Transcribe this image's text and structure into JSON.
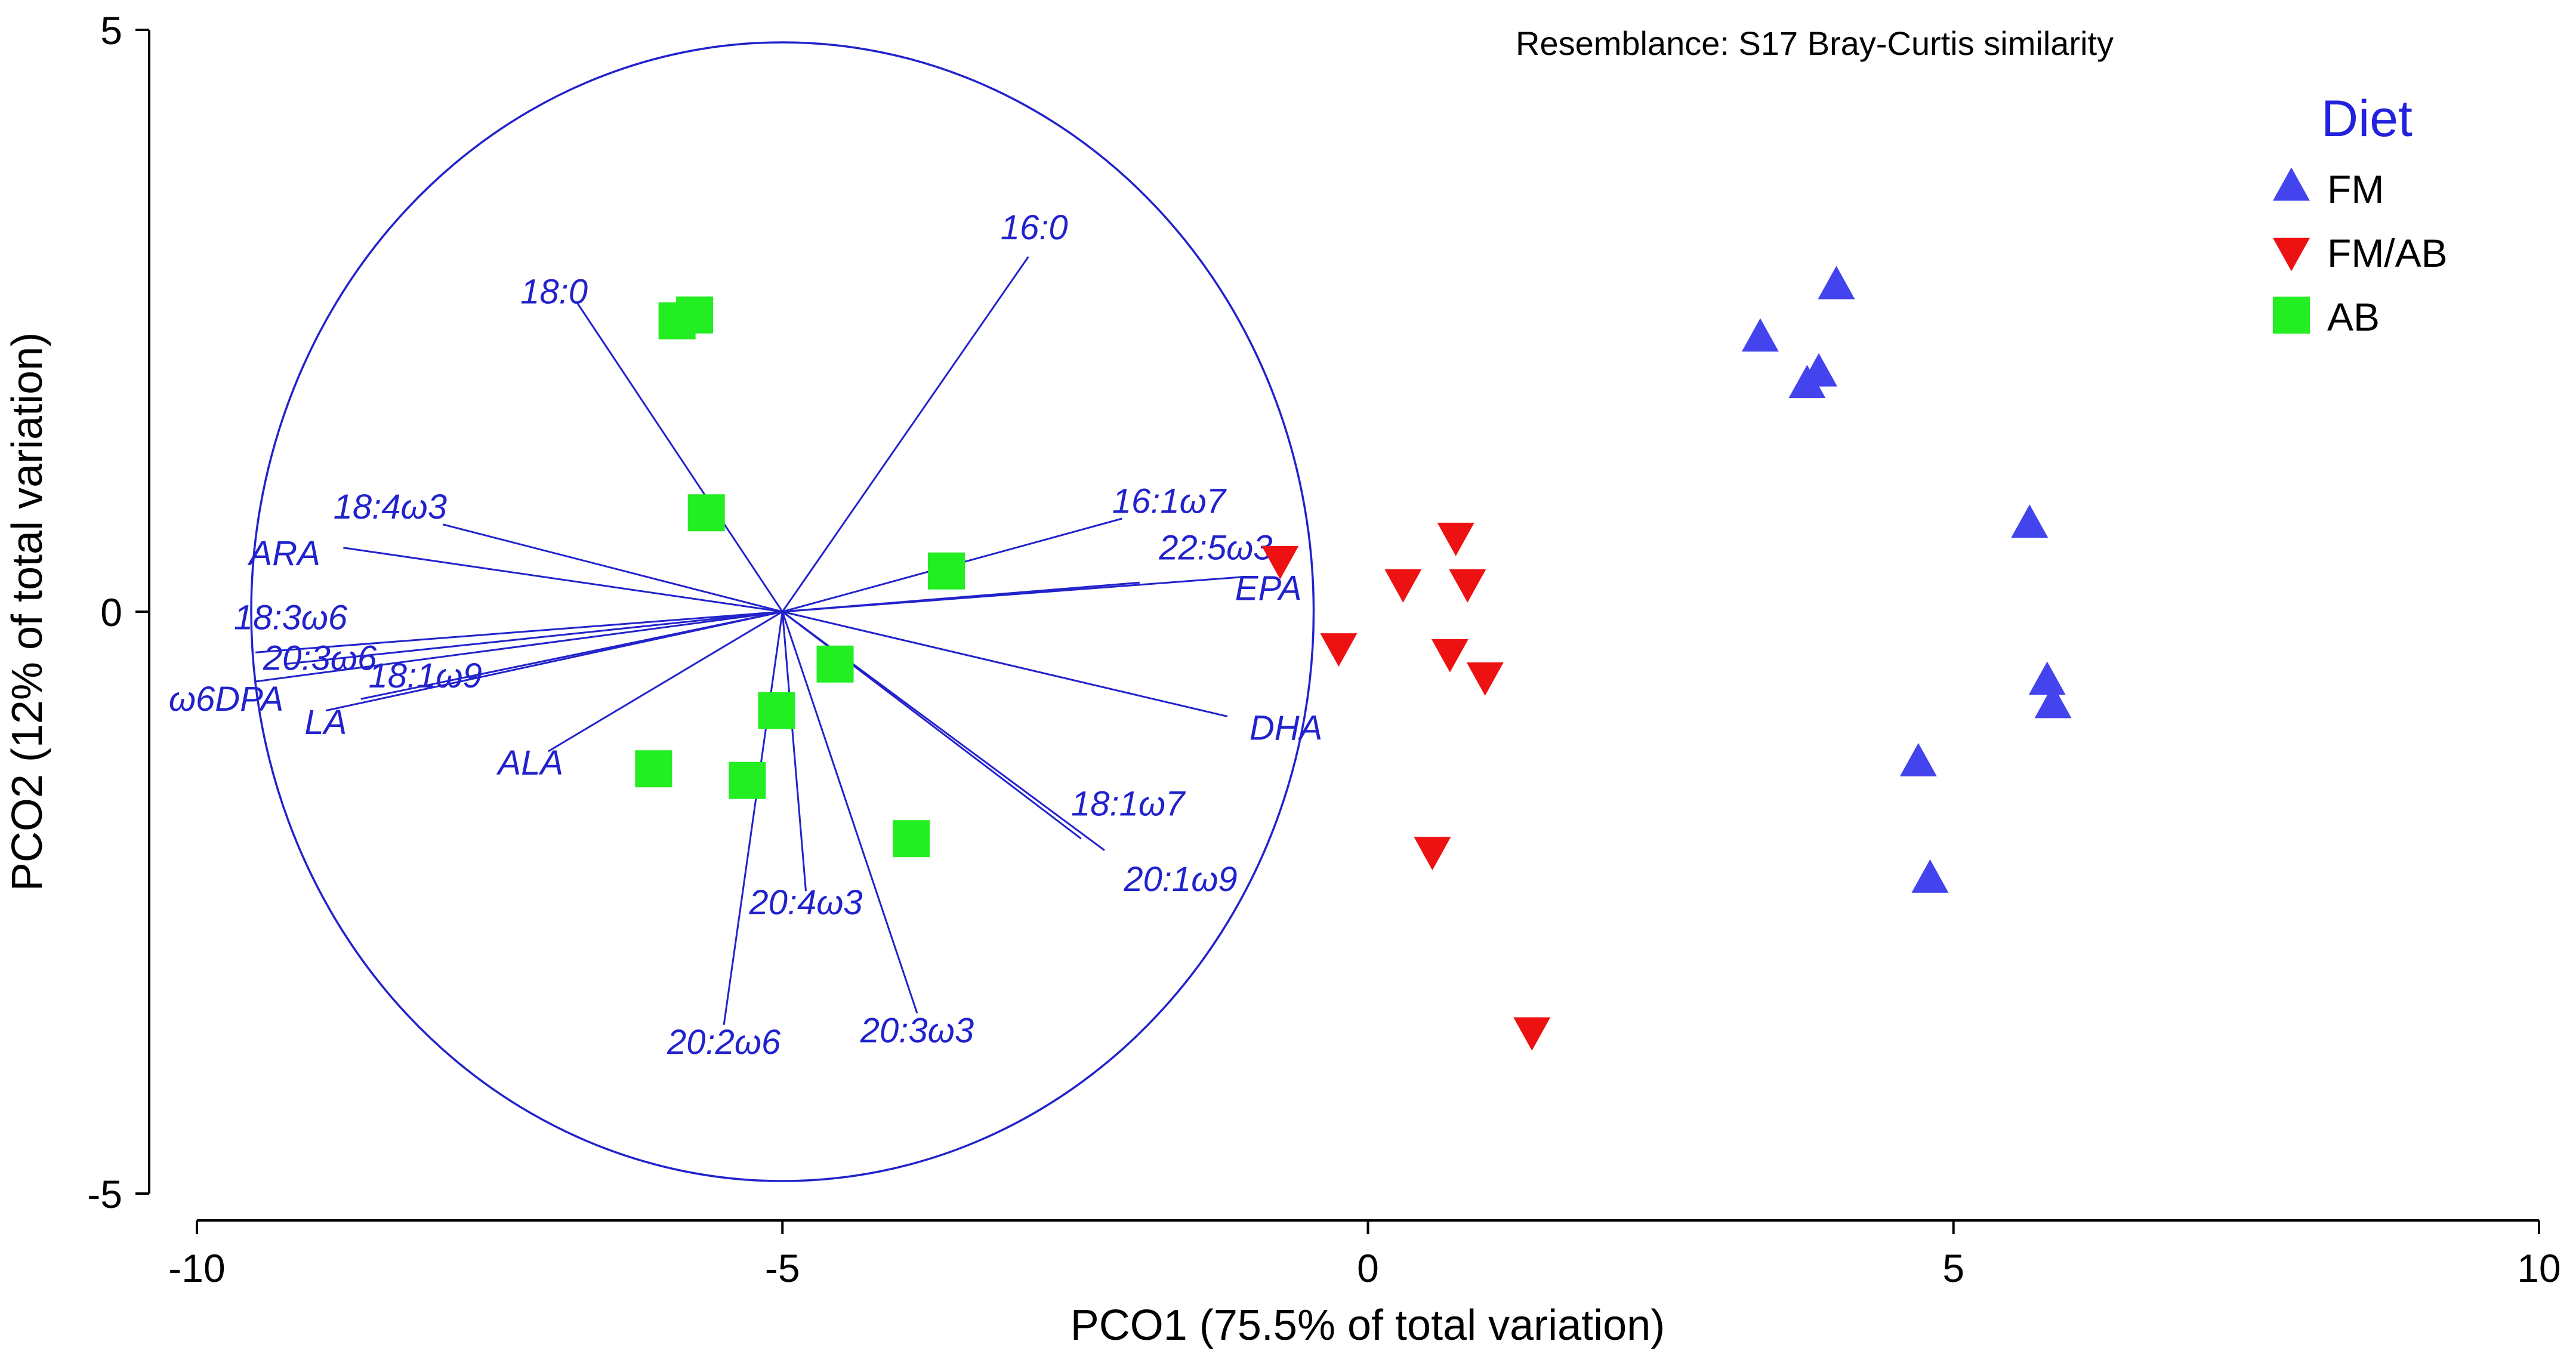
{
  "chart_data": {
    "type": "scatter",
    "title": "",
    "annotation": "Resemblance: S17 Bray-Curtis similarity",
    "xlabel": "PCO1 (75.5% of total variation)",
    "ylabel": "PCO2 (12% of total variation)",
    "xlim": [
      -10,
      10
    ],
    "ylim": [
      -5,
      5
    ],
    "xticks": [
      -10,
      -5,
      0,
      5,
      10
    ],
    "yticks": [
      -5,
      0,
      5
    ],
    "xtick_labels": [
      "-10",
      "-5",
      "0",
      "5",
      "10"
    ],
    "ytick_labels": [
      "-5",
      "0",
      "5"
    ],
    "legend": {
      "title": "Diet",
      "placement": "top-right",
      "entries": [
        {
          "label": "FM",
          "marker": "triangle-up",
          "color": "#4444ee"
        },
        {
          "label": "FM/AB",
          "marker": "triangle-down",
          "color": "#ee1111"
        },
        {
          "label": "AB",
          "marker": "square",
          "color": "#22ee22"
        }
      ]
    },
    "series": [
      {
        "name": "FM",
        "marker": "triangle-up",
        "color": "#4444ee",
        "points": [
          [
            4.0,
            2.8
          ],
          [
            3.35,
            2.35
          ],
          [
            3.85,
            2.05
          ],
          [
            3.75,
            1.95
          ],
          [
            5.65,
            0.75
          ],
          [
            5.8,
            -0.6
          ],
          [
            5.85,
            -0.8
          ],
          [
            4.7,
            -1.3
          ],
          [
            4.8,
            -2.3
          ]
        ]
      },
      {
        "name": "FM/AB",
        "marker": "triangle-down",
        "color": "#ee1111",
        "points": [
          [
            -0.75,
            0.45
          ],
          [
            0.75,
            0.65
          ],
          [
            0.3,
            0.25
          ],
          [
            0.85,
            0.25
          ],
          [
            -0.25,
            -0.3
          ],
          [
            0.7,
            -0.35
          ],
          [
            1.0,
            -0.55
          ],
          [
            0.55,
            -2.05
          ],
          [
            1.4,
            -3.6
          ]
        ]
      },
      {
        "name": "AB",
        "marker": "square",
        "color": "#22ee22",
        "points": [
          [
            -5.75,
            2.55
          ],
          [
            -5.9,
            2.5
          ],
          [
            -5.65,
            0.85
          ],
          [
            -3.6,
            0.35
          ],
          [
            -4.55,
            -0.45
          ],
          [
            -5.05,
            -0.85
          ],
          [
            -6.1,
            -1.35
          ],
          [
            -5.3,
            -1.45
          ],
          [
            -3.9,
            -1.95
          ]
        ]
      }
    ],
    "vector_overlay": {
      "origin": [
        -5.0,
        0.0
      ],
      "circle_radius": 4.75,
      "vectors": [
        {
          "label": "16:0",
          "end": [
            -2.9,
            3.05
          ],
          "label_pos": [
            -2.85,
            3.2
          ]
        },
        {
          "label": "18:0",
          "end": [
            -6.75,
            2.65
          ],
          "label_pos": [
            -6.95,
            2.65
          ]
        },
        {
          "label": "18:4ω3",
          "end": [
            -7.9,
            0.75
          ],
          "label_pos": [
            -8.35,
            0.8
          ]
        },
        {
          "label": "ARA",
          "end": [
            -8.75,
            0.55
          ],
          "label_pos": [
            -9.25,
            0.4
          ]
        },
        {
          "label": "16:1ω7",
          "end": [
            -2.1,
            0.8
          ],
          "label_pos": [
            -1.7,
            0.85
          ]
        },
        {
          "label": "22:5ω3",
          "end": [
            -1.95,
            0.25
          ],
          "label_pos": [
            -1.3,
            0.45
          ]
        },
        {
          "label": "EPA",
          "end": [
            -1.05,
            0.3
          ],
          "label_pos": [
            -0.85,
            0.1
          ]
        },
        {
          "label": "18:3ω6",
          "end": [
            -9.5,
            -0.35
          ],
          "label_pos": [
            -9.2,
            -0.15
          ]
        },
        {
          "label": "20:3ω6",
          "end": [
            -9.25,
            -0.45
          ],
          "label_pos": [
            -8.95,
            -0.5
          ]
        },
        {
          "label": "18:1ω9",
          "end": [
            -8.6,
            -0.75
          ],
          "label_pos": [
            -8.05,
            -0.65
          ]
        },
        {
          "label": "ω6DPA",
          "end": [
            -9.5,
            -0.6
          ],
          "label_pos": [
            -9.75,
            -0.85
          ]
        },
        {
          "label": "LA",
          "end": [
            -8.9,
            -0.85
          ],
          "label_pos": [
            -8.9,
            -1.05
          ]
        },
        {
          "label": "ALA",
          "end": [
            -7.0,
            -1.2
          ],
          "label_pos": [
            -7.15,
            -1.4
          ]
        },
        {
          "label": "DHA",
          "end": [
            -1.2,
            -0.9
          ],
          "label_pos": [
            -0.7,
            -1.1
          ]
        },
        {
          "label": "18:1ω7",
          "end": [
            -2.45,
            -1.95
          ],
          "label_pos": [
            -2.05,
            -1.75
          ]
        },
        {
          "label": "20:1ω9",
          "end": [
            -2.25,
            -2.05
          ],
          "label_pos": [
            -1.6,
            -2.4
          ]
        },
        {
          "label": "20:4ω3",
          "end": [
            -4.8,
            -2.4
          ],
          "label_pos": [
            -4.8,
            -2.6
          ]
        },
        {
          "label": "20:3ω3",
          "end": [
            -3.85,
            -3.45
          ],
          "label_pos": [
            -3.85,
            -3.7
          ]
        },
        {
          "label": "20:2ω6",
          "end": [
            -5.5,
            -3.55
          ],
          "label_pos": [
            -5.5,
            -3.8
          ]
        }
      ]
    }
  }
}
